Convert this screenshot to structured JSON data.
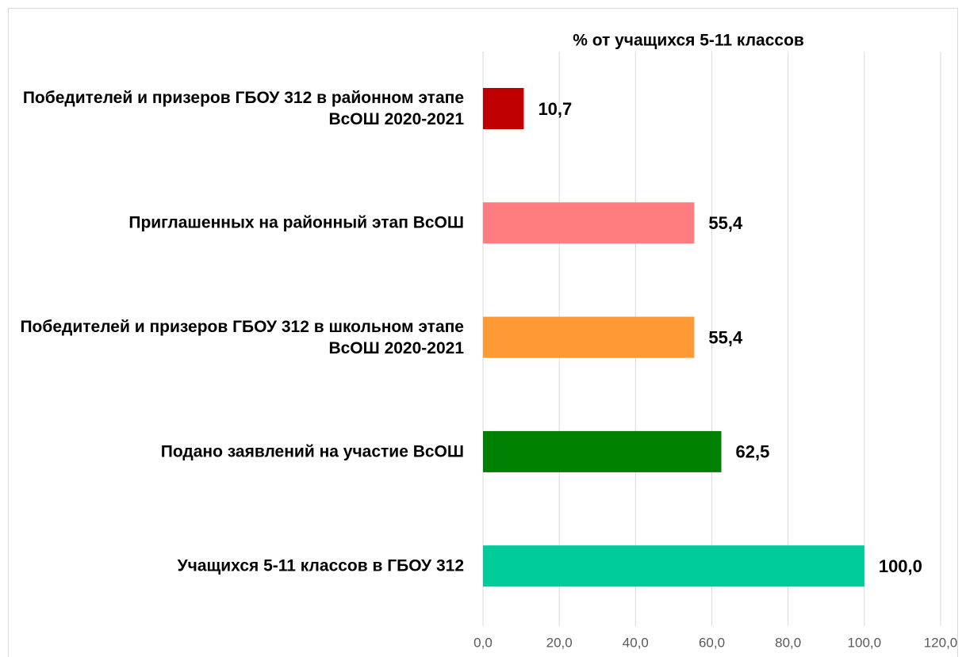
{
  "chart_data": {
    "type": "barh",
    "title": "% от учащихся 5-11 классов",
    "categories": [
      "Победителей и призеров ГБОУ 312 в районном этапе ВсОШ 2020-2021",
      "Приглашенных на районный этап ВсОШ",
      "Победителей и призеров ГБОУ 312 в школьном этапе ВсОШ 2020-2021",
      "Подано заявлений на участие ВсОШ",
      "Учащихся 5-11 классов в ГБОУ 312"
    ],
    "values": [
      10.7,
      55.4,
      55.4,
      62.5,
      100.0
    ],
    "value_labels": [
      "10,7",
      "55,4",
      "55,4",
      "62,5",
      "100,0"
    ],
    "colors": [
      "#c00000",
      "#ff7c80",
      "#ff9933",
      "#008000",
      "#00cc99"
    ],
    "xlim": [
      0,
      120
    ],
    "xticks": [
      {
        "value": 0,
        "label": "0,0"
      },
      {
        "value": 20,
        "label": "20,0"
      },
      {
        "value": 40,
        "label": "40,0"
      },
      {
        "value": 60,
        "label": "60,0"
      },
      {
        "value": 80,
        "label": "80,0"
      },
      {
        "value": 100,
        "label": "100,0"
      },
      {
        "value": 120,
        "label": "120,0"
      }
    ],
    "grid": true
  }
}
